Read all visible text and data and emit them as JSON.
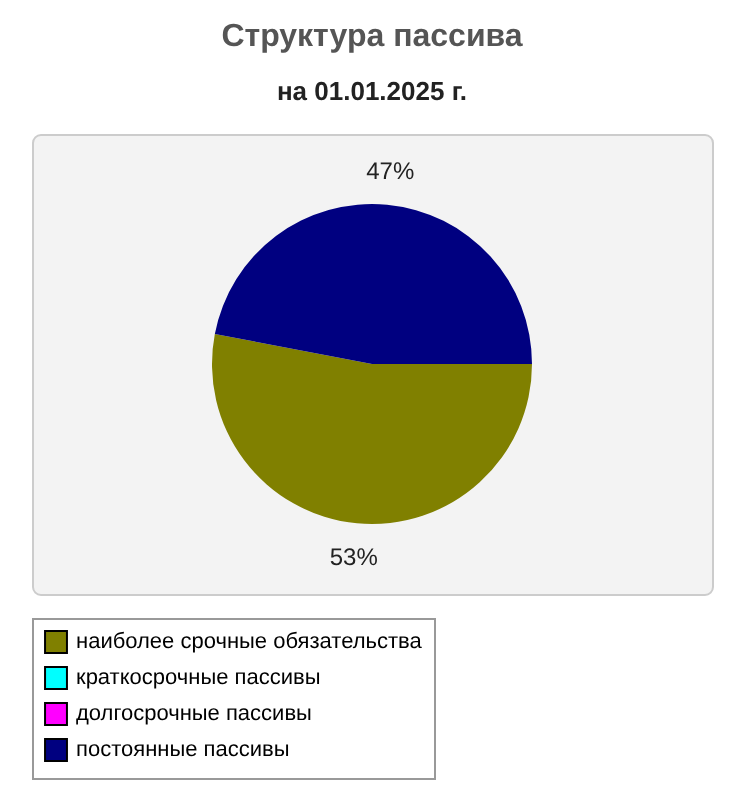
{
  "chart_data": {
    "type": "pie",
    "title": "Структура пассива",
    "subtitle": "на 01.01.2025 г.",
    "categories": [
      "наиболее срочные обязательства",
      "краткосрочные пассивы",
      "долгосрочные пассивы",
      "постоянные пассивы"
    ],
    "values": [
      53,
      0,
      0,
      47
    ],
    "colors": [
      "#808000",
      "#00ffff",
      "#ff00ff",
      "#000080"
    ],
    "value_labels": [
      "53%",
      null,
      null,
      "47%"
    ],
    "legend": "bottom"
  }
}
